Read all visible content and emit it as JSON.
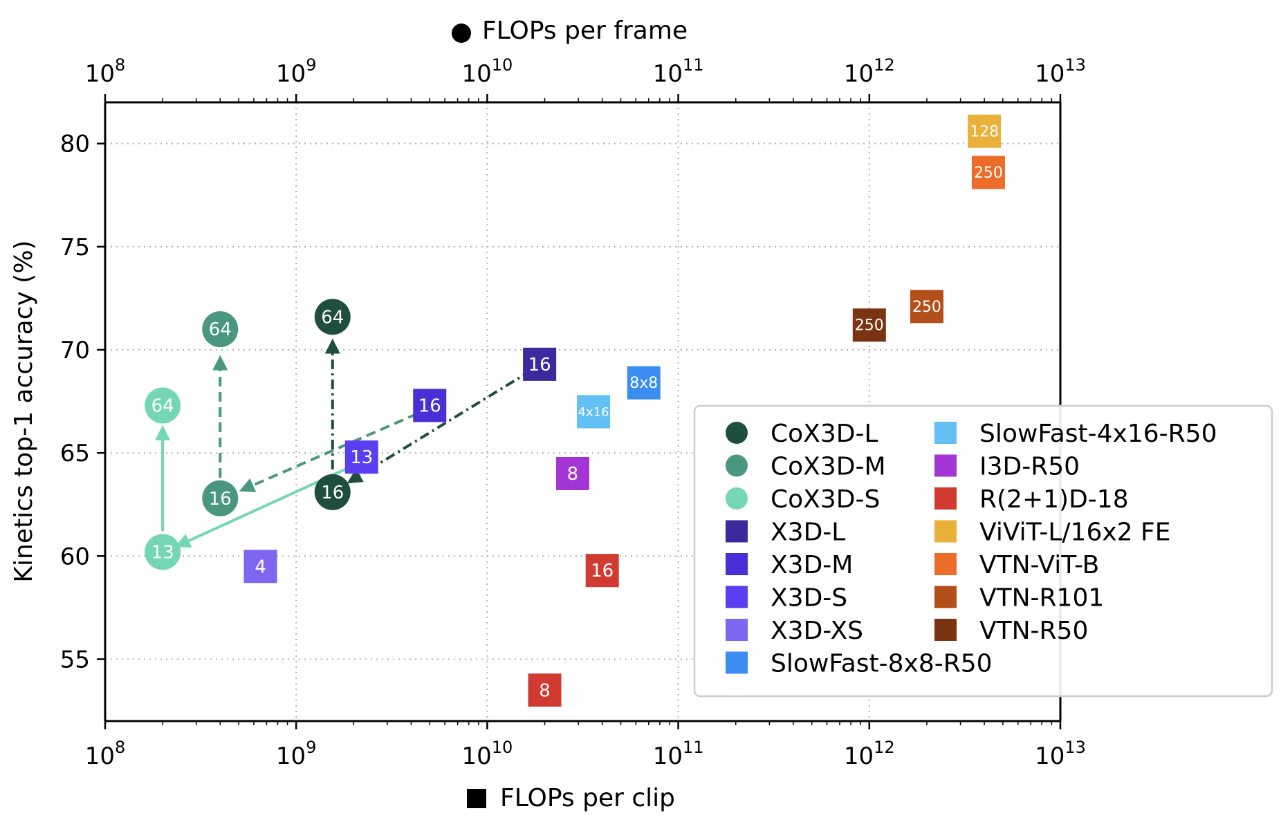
{
  "chart_data": {
    "type": "scatter",
    "title": "",
    "xlabel_bottom": "FLOPs per clip",
    "xlabel_top": "FLOPs per frame",
    "ylabel": "Kinetics top-1 accuracy (%)",
    "xscale": "log",
    "xlim": [
      100000000,
      10000000000000
    ],
    "ylim": [
      52,
      82
    ],
    "yticks": [
      55,
      60,
      65,
      70,
      75,
      80
    ],
    "xtick_labels": [
      {
        "base": "10",
        "exp": "8"
      },
      {
        "base": "10",
        "exp": "9"
      },
      {
        "base": "10",
        "exp": "10"
      },
      {
        "base": "10",
        "exp": "11"
      },
      {
        "base": "10",
        "exp": "12"
      },
      {
        "base": "10",
        "exp": "13"
      }
    ],
    "grid": true,
    "legend_position": "lower-right",
    "series": [
      {
        "name": "CoX3D-L",
        "marker": "circle",
        "color": "#1f4e3d",
        "points": [
          {
            "x": 1550000000,
            "y": 71.6,
            "label": "64"
          },
          {
            "x": 1550000000,
            "y": 63.1,
            "label": "16"
          }
        ]
      },
      {
        "name": "CoX3D-M",
        "marker": "circle",
        "color": "#4a9780",
        "points": [
          {
            "x": 400000000,
            "y": 71.0,
            "label": "64"
          },
          {
            "x": 400000000,
            "y": 62.8,
            "label": "16"
          }
        ]
      },
      {
        "name": "CoX3D-S",
        "marker": "circle",
        "color": "#74d6b5",
        "points": [
          {
            "x": 200000000,
            "y": 67.3,
            "label": "64"
          },
          {
            "x": 200000000,
            "y": 60.2,
            "label": "13"
          }
        ]
      },
      {
        "name": "X3D-L",
        "marker": "square",
        "color": "#3a2a9e",
        "points": [
          {
            "x": 18800000000,
            "y": 69.3,
            "label": "16"
          }
        ]
      },
      {
        "name": "X3D-M",
        "marker": "square",
        "color": "#4a2ed6",
        "points": [
          {
            "x": 5000000000,
            "y": 67.3,
            "label": "16"
          }
        ]
      },
      {
        "name": "X3D-S",
        "marker": "square",
        "color": "#5a3ff2",
        "points": [
          {
            "x": 2200000000,
            "y": 64.8,
            "label": "13"
          }
        ]
      },
      {
        "name": "X3D-XS",
        "marker": "square",
        "color": "#7f66f0",
        "points": [
          {
            "x": 650000000,
            "y": 59.5,
            "label": "4"
          }
        ]
      },
      {
        "name": "SlowFast-8x8-R50",
        "marker": "square",
        "color": "#3b8ef0",
        "points": [
          {
            "x": 66000000000,
            "y": 68.4,
            "label": "8x8"
          }
        ]
      },
      {
        "name": "SlowFast-4x16-R50",
        "marker": "square",
        "color": "#63c0f5",
        "points": [
          {
            "x": 36000000000,
            "y": 67.0,
            "label": "4x16"
          }
        ]
      },
      {
        "name": "I3D-R50",
        "marker": "square",
        "color": "#a235d4",
        "points": [
          {
            "x": 28000000000,
            "y": 64.0,
            "label": "8"
          }
        ]
      },
      {
        "name": "R(2+1)D-18",
        "marker": "square",
        "color": "#d13a30",
        "points": [
          {
            "x": 40000000000,
            "y": 59.3,
            "label": "16"
          },
          {
            "x": 20000000000,
            "y": 53.5,
            "label": "8"
          }
        ]
      },
      {
        "name": "ViViT-L/16x2 FE",
        "marker": "square",
        "color": "#eab13a",
        "points": [
          {
            "x": 4000000000000,
            "y": 80.6,
            "label": "128"
          }
        ]
      },
      {
        "name": "VTN-ViT-B",
        "marker": "square",
        "color": "#ec6d2a",
        "points": [
          {
            "x": 4200000000000,
            "y": 78.6,
            "label": "250"
          }
        ]
      },
      {
        "name": "VTN-R101",
        "marker": "square",
        "color": "#b34f1a",
        "points": [
          {
            "x": 2000000000000,
            "y": 72.1,
            "label": "250"
          }
        ]
      },
      {
        "name": "VTN-R50",
        "marker": "square",
        "color": "#7a3411",
        "points": [
          {
            "x": 1000000000000,
            "y": 71.2,
            "label": "250"
          }
        ]
      }
    ],
    "arrows": [
      {
        "from": [
          1550000000,
          64.2
        ],
        "to": [
          1550000000,
          70.4
        ],
        "color": "#1f4e3d",
        "style": "dashdot"
      },
      {
        "from": [
          17000000000,
          69.0
        ],
        "to": [
          1900000000,
          63.6
        ],
        "color": "#1f4e3d",
        "style": "dashdot"
      },
      {
        "from": [
          400000000,
          63.8
        ],
        "to": [
          400000000,
          69.6
        ],
        "color": "#4a9780",
        "style": "dashed"
      },
      {
        "from": [
          4300000000,
          66.9
        ],
        "to": [
          520000000,
          63.2
        ],
        "color": "#4a9780",
        "style": "dashed"
      },
      {
        "from": [
          200000000,
          61.2
        ],
        "to": [
          200000000,
          66.2
        ],
        "color": "#74d6b5",
        "style": "solid"
      },
      {
        "from": [
          1900000000,
          64.3
        ],
        "to": [
          240000000,
          60.5
        ],
        "color": "#74d6b5",
        "style": "solid"
      }
    ]
  }
}
